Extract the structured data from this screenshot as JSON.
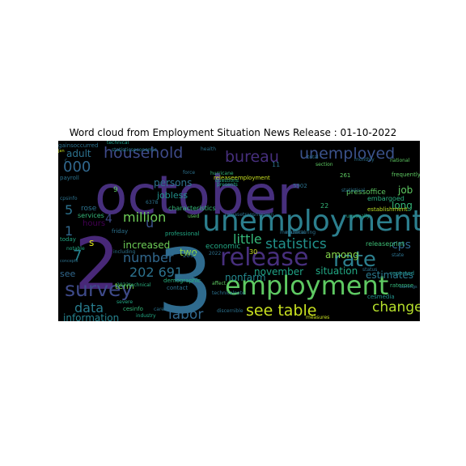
{
  "title": "Word cloud from Employment Situation News Release : 01-10-2022",
  "words": [
    {
      "text": "october",
      "color": "#472f7d"
    },
    {
      "text": "3",
      "color": "#2f6b8e"
    },
    {
      "text": "2",
      "color": "#482878"
    },
    {
      "text": "unemployment",
      "color": "#2c7f8e"
    },
    {
      "text": "employment",
      "color": "#5ec962"
    },
    {
      "text": "release",
      "color": "#472f7d"
    },
    {
      "text": "rate",
      "color": "#2c7f8e"
    },
    {
      "text": "survey",
      "color": "#3e4a89"
    },
    {
      "text": "unemployed",
      "color": "#3b528b"
    },
    {
      "text": "household",
      "color": "#3e4a89"
    },
    {
      "text": "bureau",
      "color": "#472f7d"
    },
    {
      "text": "see table",
      "color": "#c8e020"
    },
    {
      "text": "changed",
      "color": "#b5de2b"
    },
    {
      "text": "million",
      "color": "#6ece58"
    },
    {
      "text": "statistics",
      "color": "#21918c"
    },
    {
      "text": "labor",
      "color": "#31688e"
    },
    {
      "text": "data",
      "color": "#287c8e"
    },
    {
      "text": "little",
      "color": "#35b779"
    },
    {
      "text": "number",
      "color": "#31688e"
    },
    {
      "text": "202 691",
      "color": "#2c728e"
    },
    {
      "text": "information",
      "color": "#26828e"
    },
    {
      "text": "nonfarm",
      "color": "#23888e"
    },
    {
      "text": "cps",
      "color": "#31688e"
    },
    {
      "text": "situation",
      "color": "#22a884"
    },
    {
      "text": "estimates",
      "color": "#2a788e"
    },
    {
      "text": "000",
      "color": "#31688e"
    },
    {
      "text": "november",
      "color": "#20a386"
    },
    {
      "text": "increased",
      "color": "#6ece58"
    },
    {
      "text": "persons",
      "color": "#2c728e"
    },
    {
      "text": "jobless",
      "color": "#21918c"
    },
    {
      "text": "adult",
      "color": "#2c728e"
    },
    {
      "text": "among",
      "color": "#84d44b"
    },
    {
      "text": "long",
      "color": "#35b779"
    },
    {
      "text": "job",
      "color": "#5ec962"
    },
    {
      "text": "two",
      "color": "#90d743"
    },
    {
      "text": "u",
      "color": "#3b528b"
    },
    {
      "text": "4",
      "color": "#3e4a89"
    },
    {
      "text": "5",
      "color": "#2c728e"
    },
    {
      "text": "7",
      "color": "#26828e"
    },
    {
      "text": "1",
      "color": "#31688e"
    },
    {
      "text": "s",
      "color": "#dde318"
    },
    {
      "text": "9",
      "color": "#5ec962"
    },
    {
      "text": "see",
      "color": "#31688e"
    },
    {
      "text": "term",
      "color": "#7ad151"
    },
    {
      "text": "hours",
      "color": "#440154"
    },
    {
      "text": "rose",
      "color": "#2c728e"
    },
    {
      "text": "services",
      "color": "#35b779"
    },
    {
      "text": "friday",
      "color": "#2c728e"
    },
    {
      "text": "economic",
      "color": "#22a884"
    },
    {
      "text": "pressoffice",
      "color": "#5ec962"
    },
    {
      "text": "releaseprint",
      "color": "#3dbc74"
    },
    {
      "text": "establishment",
      "color": "#bddf26"
    },
    {
      "text": "embargoed",
      "color": "#2ab07f"
    },
    {
      "text": "reported",
      "color": "#21918c"
    },
    {
      "text": "raterose",
      "color": "#35b779"
    },
    {
      "text": "cesmedia",
      "color": "#21918c"
    },
    {
      "text": "cesinfo",
      "color": "#35b779"
    },
    {
      "text": "contact",
      "color": "#2c728e"
    },
    {
      "text": "demographic",
      "color": "#2ab07f"
    },
    {
      "text": "characteristics",
      "color": "#35b779"
    },
    {
      "text": "releasetransmission",
      "color": "#2c728e"
    },
    {
      "text": "releaseemployment",
      "color": "#c8e020"
    },
    {
      "text": "professional",
      "color": "#22a884"
    },
    {
      "text": "technical",
      "color": "#1f9e89"
    },
    {
      "text": "2022technical",
      "color": "#2ab07f"
    },
    {
      "text": "statisticseconomic",
      "color": "#26828e"
    },
    {
      "text": "gainsoccurred",
      "color": "#2c728e"
    },
    {
      "text": "payroll",
      "color": "#2c728e"
    },
    {
      "text": "cpsinfo",
      "color": "#2c728e"
    },
    {
      "text": "today",
      "color": "#22a884"
    },
    {
      "text": "notable",
      "color": "#22a884"
    },
    {
      "text": "concepts",
      "color": "#2c728e"
    },
    {
      "text": "including",
      "color": "#2c728e"
    },
    {
      "text": "care",
      "color": "#2c728e"
    },
    {
      "text": "severe",
      "color": "#22a884"
    },
    {
      "text": "industry",
      "color": "#22a884"
    },
    {
      "text": "status",
      "color": "#2c728e"
    },
    {
      "text": "state",
      "color": "#2c728e"
    },
    {
      "text": "earnings",
      "color": "#2c728e"
    },
    {
      "text": "frequently",
      "color": "#5ec962"
    },
    {
      "text": "national",
      "color": "#5ec962"
    },
    {
      "text": "monthly",
      "color": "#2c728e"
    },
    {
      "text": "section",
      "color": "#5ec962"
    },
    {
      "text": "total",
      "color": "#2c728e"
    },
    {
      "text": "health",
      "color": "#2c728e"
    },
    {
      "text": "force",
      "color": "#2c728e"
    },
    {
      "text": "hurricane",
      "color": "#35b779"
    },
    {
      "text": "questions",
      "color": "#22a884"
    },
    {
      "text": "presents",
      "color": "#22a884"
    },
    {
      "text": "used",
      "color": "#5ec962"
    },
    {
      "text": "affect",
      "color": "#5ec962"
    },
    {
      "text": "technicalnote",
      "color": "#2c728e"
    },
    {
      "text": "discernible",
      "color": "#2c728e"
    },
    {
      "text": "measures",
      "color": "#c8e020"
    },
    {
      "text": "unusually",
      "color": "#22a884"
    },
    {
      "text": "manufacturing",
      "color": "#2c728e"
    },
    {
      "text": "statistical",
      "color": "#2c728e"
    },
    {
      "text": "material",
      "color": "#2c728e"
    },
    {
      "text": "11",
      "color": "#2c728e"
    },
    {
      "text": "30",
      "color": "#c8e020"
    },
    {
      "text": "22",
      "color": "#35b779"
    },
    {
      "text": "261",
      "color": "#5ec962"
    },
    {
      "text": "5902",
      "color": "#2c728e"
    },
    {
      "text": "6378",
      "color": "#2c728e"
    },
    {
      "text": "20978",
      "color": "#2c728e"
    },
    {
      "text": "2022",
      "color": "#2c728e"
    },
    {
      "text": "jan",
      "color": "#c8e020"
    },
    {
      "text": "c",
      "color": "#2c728e"
    }
  ]
}
